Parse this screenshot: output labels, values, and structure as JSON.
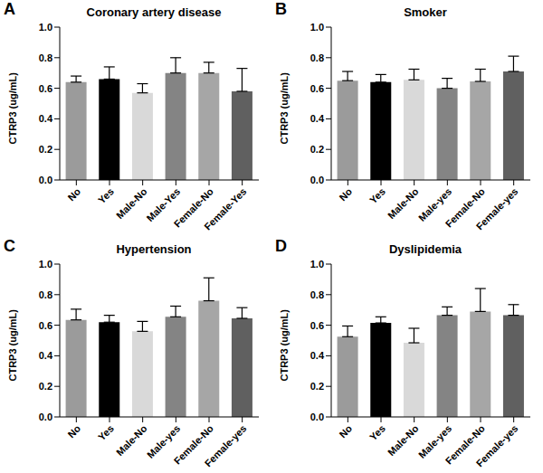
{
  "chart_data": [
    {
      "type": "bar",
      "panel_label": "A",
      "title": "Coronary artery disease",
      "y_label": "CTRP3 (ug/mL)",
      "categories": [
        "No",
        "Yes",
        "Male-No",
        "Male-Yes",
        "Female-No",
        "Female-Yes"
      ],
      "values": [
        0.64,
        0.66,
        0.57,
        0.7,
        0.7,
        0.58
      ],
      "errors": [
        0.04,
        0.08,
        0.06,
        0.1,
        0.07,
        0.15
      ],
      "colors": [
        "#9b9b9b",
        "#000000",
        "#d9d9d9",
        "#848484",
        "#a6a6a6",
        "#606060"
      ],
      "ylim": [
        0,
        1
      ],
      "yticks": [
        {
          "value": 0,
          "label": "0.0"
        },
        0.2,
        0.4,
        0.6,
        0.8,
        {
          "value": 1,
          "label": "1.0"
        }
      ],
      "grid": false
    },
    {
      "type": "bar",
      "panel_label": "B",
      "title": "Smoker",
      "y_label": "CTRP3 (ug/mL)",
      "categories": [
        "No",
        "Yes",
        "Male-No",
        "Male-yes",
        "Female-No",
        "Female-yes"
      ],
      "values": [
        0.65,
        0.64,
        0.655,
        0.6,
        0.645,
        0.71
      ],
      "errors": [
        0.06,
        0.05,
        0.07,
        0.065,
        0.08,
        0.1
      ],
      "colors": [
        "#9b9b9b",
        "#000000",
        "#d9d9d9",
        "#848484",
        "#a6a6a6",
        "#606060"
      ],
      "ylim": [
        0,
        1
      ],
      "yticks": [
        {
          "value": 0,
          "label": "0.0"
        },
        0.2,
        0.4,
        0.6,
        0.8,
        {
          "value": 1,
          "label": "1.0"
        }
      ],
      "grid": false
    },
    {
      "type": "bar",
      "panel_label": "C",
      "title": "Hypertension",
      "y_label": "CTRP3 (ug/mL)",
      "categories": [
        "No",
        "Yes",
        "Male-No",
        "Male-yes",
        "Female-No",
        "Female-yes"
      ],
      "values": [
        0.635,
        0.62,
        0.56,
        0.655,
        0.76,
        0.645
      ],
      "errors": [
        0.07,
        0.045,
        0.065,
        0.07,
        0.15,
        0.07
      ],
      "colors": [
        "#9b9b9b",
        "#000000",
        "#d9d9d9",
        "#848484",
        "#a6a6a6",
        "#606060"
      ],
      "ylim": [
        0,
        1
      ],
      "yticks": [
        {
          "value": 0,
          "label": "0.0"
        },
        0.2,
        0.4,
        0.6,
        0.8,
        {
          "value": 1,
          "label": "1.0"
        }
      ],
      "grid": false
    },
    {
      "type": "bar",
      "panel_label": "D",
      "title": "Dyslipidemia",
      "y_label": "CTRP3 (ug/mL)",
      "categories": [
        "No",
        "Yes",
        "Male-No",
        "Male-yes",
        "Female-No",
        "Female-yes"
      ],
      "values": [
        0.525,
        0.615,
        0.485,
        0.665,
        0.69,
        0.665
      ],
      "errors": [
        0.07,
        0.04,
        0.095,
        0.055,
        0.15,
        0.07
      ],
      "colors": [
        "#9b9b9b",
        "#000000",
        "#d9d9d9",
        "#848484",
        "#a6a6a6",
        "#606060"
      ],
      "ylim": [
        0,
        1
      ],
      "yticks": [
        {
          "value": 0,
          "label": "0.0"
        },
        0.2,
        0.4,
        0.6,
        0.8,
        {
          "value": 1,
          "label": "1.0"
        }
      ],
      "grid": false
    }
  ]
}
